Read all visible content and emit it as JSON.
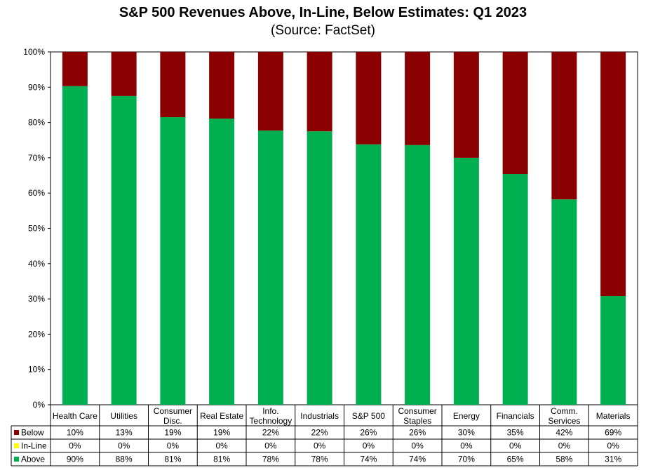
{
  "title": "S&P 500 Revenues Above, In-Line, Below Estimates: Q1 2023",
  "subtitle": "(Source: FactSet)",
  "colors": {
    "above": "#00b050",
    "inline": "#ffff00",
    "below": "#8b0000"
  },
  "chart_data": {
    "type": "bar",
    "stacked": true,
    "categories": [
      [
        "Health Care"
      ],
      [
        "Utilities"
      ],
      [
        "Consumer",
        "Disc."
      ],
      [
        "Real Estate"
      ],
      [
        "Info.",
        "Technology"
      ],
      [
        "Industrials"
      ],
      [
        "S&P 500"
      ],
      [
        "Consumer",
        "Staples"
      ],
      [
        "Energy"
      ],
      [
        "Financials"
      ],
      [
        "Comm.",
        "Services"
      ],
      [
        "Materials"
      ]
    ],
    "series": [
      {
        "name": "Above",
        "values": [
          90.3,
          87.5,
          81.5,
          81.1,
          77.7,
          77.5,
          73.8,
          73.6,
          70.0,
          65.4,
          58.2,
          30.8
        ],
        "labels": [
          "90%",
          "88%",
          "81%",
          "81%",
          "78%",
          "78%",
          "74%",
          "74%",
          "70%",
          "65%",
          "58%",
          "31%"
        ]
      },
      {
        "name": "In-Line",
        "values": [
          0,
          0,
          0,
          0,
          0,
          0,
          0,
          0,
          0,
          0,
          0,
          0
        ],
        "labels": [
          "0%",
          "0%",
          "0%",
          "0%",
          "0%",
          "0%",
          "0%",
          "0%",
          "0%",
          "0%",
          "0%",
          "0%"
        ]
      },
      {
        "name": "Below",
        "values": [
          9.7,
          12.5,
          18.5,
          18.9,
          22.3,
          22.5,
          26.2,
          26.4,
          30.0,
          34.6,
          41.8,
          69.2
        ],
        "labels": [
          "10%",
          "13%",
          "19%",
          "19%",
          "22%",
          "22%",
          "26%",
          "26%",
          "30%",
          "35%",
          "42%",
          "69%"
        ]
      }
    ],
    "y_ticks": [
      "0%",
      "10%",
      "20%",
      "30%",
      "40%",
      "50%",
      "60%",
      "70%",
      "80%",
      "90%",
      "100%"
    ],
    "ylim": [
      0,
      100
    ],
    "table_rows": [
      "Below",
      "In-Line",
      "Above"
    ],
    "legend": "data-table"
  }
}
